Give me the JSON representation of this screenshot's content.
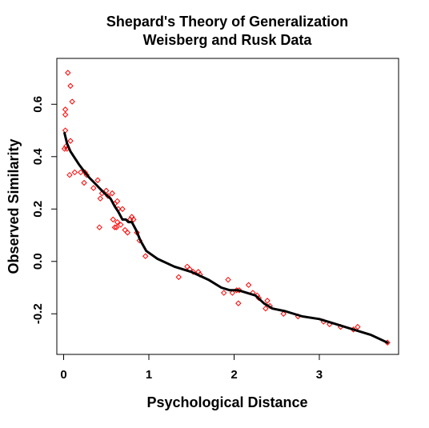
{
  "chart_data": {
    "type": "scatter",
    "title": "Shepard's Theory of Generalization",
    "subtitle": "Weisberg and Rusk Data",
    "xlabel": "Psychological Distance",
    "ylabel": "Observed Similarity",
    "xlim": [
      -0.08,
      3.93
    ],
    "ylim": [
      -0.355,
      0.775
    ],
    "x_ticks": [
      0,
      1,
      2,
      3
    ],
    "y_ticks": [
      -0.2,
      0.0,
      0.2,
      0.4,
      0.6
    ],
    "x_tick_labels": [
      "0",
      "1",
      "2",
      "3"
    ],
    "y_tick_labels": [
      "-0.2",
      "0.0",
      "0.2",
      "0.4",
      "0.6"
    ],
    "grid": false,
    "point_color": "#ff0000",
    "line_color": "#000000",
    "points": [
      [
        0.05,
        0.72
      ],
      [
        0.08,
        0.67
      ],
      [
        0.1,
        0.61
      ],
      [
        0.02,
        0.58
      ],
      [
        0.02,
        0.56
      ],
      [
        0.02,
        0.5
      ],
      [
        0.03,
        0.44
      ],
      [
        0.01,
        0.43
      ],
      [
        0.04,
        0.43
      ],
      [
        0.08,
        0.46
      ],
      [
        0.07,
        0.33
      ],
      [
        0.13,
        0.34
      ],
      [
        0.2,
        0.34
      ],
      [
        0.25,
        0.34
      ],
      [
        0.27,
        0.33
      ],
      [
        0.24,
        0.3
      ],
      [
        0.35,
        0.28
      ],
      [
        0.4,
        0.31
      ],
      [
        0.45,
        0.26
      ],
      [
        0.5,
        0.27
      ],
      [
        0.43,
        0.24
      ],
      [
        0.52,
        0.25
      ],
      [
        0.57,
        0.26
      ],
      [
        0.6,
        0.22
      ],
      [
        0.63,
        0.23
      ],
      [
        0.64,
        0.2
      ],
      [
        0.69,
        0.2
      ],
      [
        0.58,
        0.16
      ],
      [
        0.63,
        0.15
      ],
      [
        0.67,
        0.14
      ],
      [
        0.6,
        0.13
      ],
      [
        0.62,
        0.13
      ],
      [
        0.72,
        0.12
      ],
      [
        0.78,
        0.16
      ],
      [
        0.8,
        0.17
      ],
      [
        0.82,
        0.16
      ],
      [
        0.86,
        0.11
      ],
      [
        0.89,
        0.08
      ],
      [
        0.75,
        0.11
      ],
      [
        0.42,
        0.13
      ],
      [
        0.96,
        0.02
      ],
      [
        1.35,
        -0.06
      ],
      [
        1.45,
        -0.02
      ],
      [
        1.48,
        -0.03
      ],
      [
        1.52,
        -0.04
      ],
      [
        1.58,
        -0.04
      ],
      [
        1.6,
        -0.05
      ],
      [
        1.88,
        -0.12
      ],
      [
        1.93,
        -0.07
      ],
      [
        1.98,
        -0.12
      ],
      [
        2.03,
        -0.11
      ],
      [
        2.06,
        -0.11
      ],
      [
        2.05,
        -0.16
      ],
      [
        2.17,
        -0.09
      ],
      [
        2.22,
        -0.12
      ],
      [
        2.27,
        -0.13
      ],
      [
        2.29,
        -0.14
      ],
      [
        2.37,
        -0.18
      ],
      [
        2.39,
        -0.15
      ],
      [
        2.42,
        -0.17
      ],
      [
        2.58,
        -0.2
      ],
      [
        2.75,
        -0.21
      ],
      [
        3.05,
        -0.23
      ],
      [
        3.12,
        -0.24
      ],
      [
        3.25,
        -0.25
      ],
      [
        3.4,
        -0.26
      ],
      [
        3.45,
        -0.25
      ],
      [
        3.8,
        -0.31
      ]
    ],
    "fit_line": [
      [
        0.01,
        0.49
      ],
      [
        0.04,
        0.45
      ],
      [
        0.08,
        0.42
      ],
      [
        0.12,
        0.4
      ],
      [
        0.18,
        0.37
      ],
      [
        0.25,
        0.34
      ],
      [
        0.3,
        0.32
      ],
      [
        0.36,
        0.3
      ],
      [
        0.42,
        0.28
      ],
      [
        0.48,
        0.26
      ],
      [
        0.55,
        0.24
      ],
      [
        0.6,
        0.21
      ],
      [
        0.64,
        0.19
      ],
      [
        0.69,
        0.16
      ],
      [
        0.73,
        0.16
      ],
      [
        0.76,
        0.15
      ],
      [
        0.8,
        0.15
      ],
      [
        0.85,
        0.12
      ],
      [
        0.9,
        0.08
      ],
      [
        0.97,
        0.04
      ],
      [
        1.1,
        0.01
      ],
      [
        1.3,
        -0.02
      ],
      [
        1.5,
        -0.04
      ],
      [
        1.7,
        -0.07
      ],
      [
        1.85,
        -0.1
      ],
      [
        1.95,
        -0.11
      ],
      [
        2.05,
        -0.11
      ],
      [
        2.15,
        -0.12
      ],
      [
        2.25,
        -0.13
      ],
      [
        2.35,
        -0.16
      ],
      [
        2.45,
        -0.18
      ],
      [
        2.6,
        -0.19
      ],
      [
        2.8,
        -0.21
      ],
      [
        3.0,
        -0.22
      ],
      [
        3.2,
        -0.24
      ],
      [
        3.4,
        -0.26
      ],
      [
        3.6,
        -0.28
      ],
      [
        3.8,
        -0.31
      ]
    ]
  }
}
